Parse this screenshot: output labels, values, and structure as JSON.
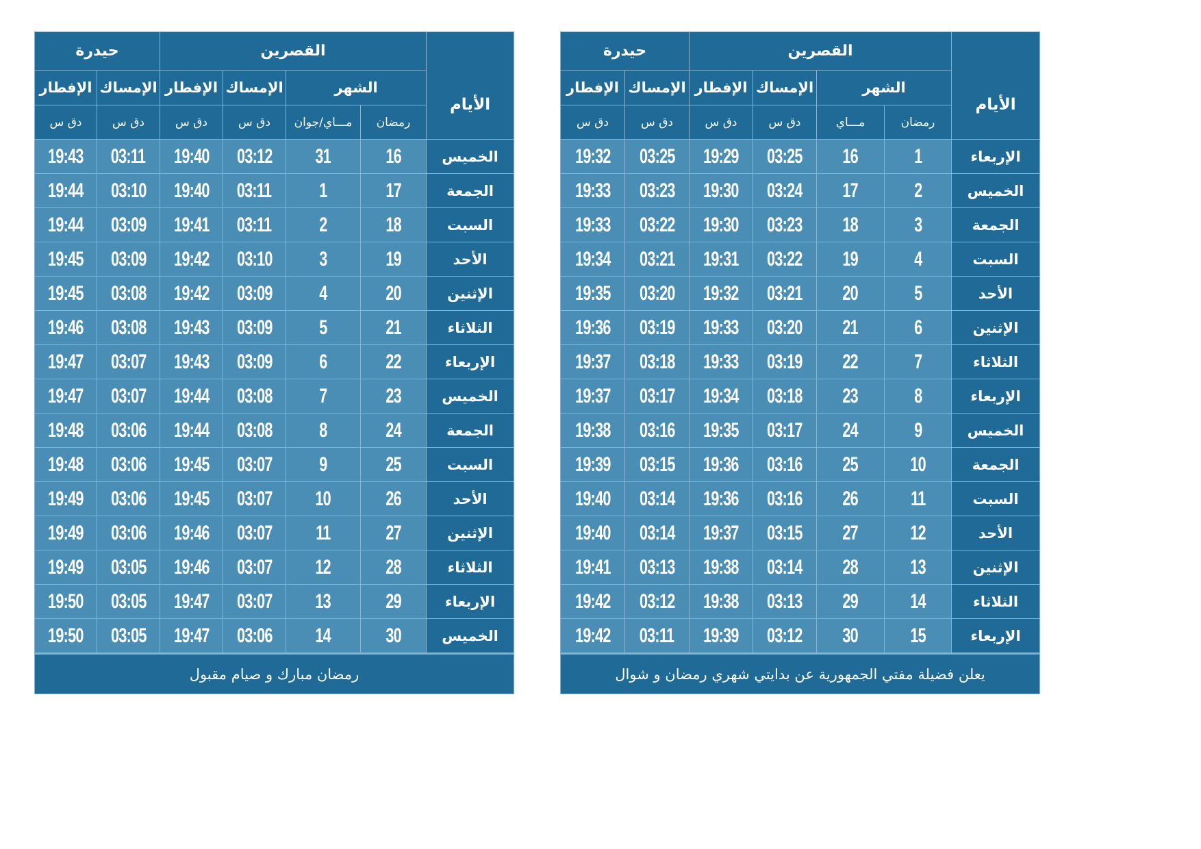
{
  "tables": [
    {
      "city1": "القصرين",
      "city2": "حيدرة",
      "days_header": "الأيام",
      "month_header": "الشهر",
      "imsak": "الإمساك",
      "iftar": "الإفطار",
      "ramadan_sub": "رمضان",
      "greg_sub": "مـــاي/جوان",
      "time_sub": "دق  س",
      "footer": "رمضان مبارك و صيام مقبول",
      "rows": [
        [
          "الخميس",
          "16",
          "31",
          "03:12",
          "19:40",
          "03:11",
          "19:43"
        ],
        [
          "الجمعة",
          "17",
          "1",
          "03:11",
          "19:40",
          "03:10",
          "19:44"
        ],
        [
          "السبت",
          "18",
          "2",
          "03:11",
          "19:41",
          "03:09",
          "19:44"
        ],
        [
          "الأحد",
          "19",
          "3",
          "03:10",
          "19:42",
          "03:09",
          "19:45"
        ],
        [
          "الإثنين",
          "20",
          "4",
          "03:09",
          "19:42",
          "03:08",
          "19:45"
        ],
        [
          "الثلاثاء",
          "21",
          "5",
          "03:09",
          "19:43",
          "03:08",
          "19:46"
        ],
        [
          "الإربعاء",
          "22",
          "6",
          "03:09",
          "19:43",
          "03:07",
          "19:47"
        ],
        [
          "الخميس",
          "23",
          "7",
          "03:08",
          "19:44",
          "03:07",
          "19:47"
        ],
        [
          "الجمعة",
          "24",
          "8",
          "03:08",
          "19:44",
          "03:06",
          "19:48"
        ],
        [
          "السبت",
          "25",
          "9",
          "03:07",
          "19:45",
          "03:06",
          "19:48"
        ],
        [
          "الأحد",
          "26",
          "10",
          "03:07",
          "19:45",
          "03:06",
          "19:49"
        ],
        [
          "الإثنين",
          "27",
          "11",
          "03:07",
          "19:46",
          "03:06",
          "19:49"
        ],
        [
          "الثلاثاء",
          "28",
          "12",
          "03:07",
          "19:46",
          "03:05",
          "19:49"
        ],
        [
          "الإربعاء",
          "29",
          "13",
          "03:07",
          "19:47",
          "03:05",
          "19:50"
        ],
        [
          "الخميس",
          "30",
          "14",
          "03:06",
          "19:47",
          "03:05",
          "19:50"
        ]
      ]
    },
    {
      "city1": "القصرين",
      "city2": "حيدرة",
      "days_header": "الأيام",
      "month_header": "الشهر",
      "imsak": "الإمساك",
      "iftar": "الإفطار",
      "ramadan_sub": "رمضان",
      "greg_sub": "مـــاي",
      "time_sub": "دق  س",
      "footer": "يعلن فضيلة مفتي الجمهورية عن بدايتي شهري رمضان و شوال",
      "rows": [
        [
          "الإربعاء",
          "1",
          "16",
          "03:25",
          "19:29",
          "03:25",
          "19:32"
        ],
        [
          "الخميس",
          "2",
          "17",
          "03:24",
          "19:30",
          "03:23",
          "19:33"
        ],
        [
          "الجمعة",
          "3",
          "18",
          "03:23",
          "19:30",
          "03:22",
          "19:33"
        ],
        [
          "السبت",
          "4",
          "19",
          "03:22",
          "19:31",
          "03:21",
          "19:34"
        ],
        [
          "الأحد",
          "5",
          "20",
          "03:21",
          "19:32",
          "03:20",
          "19:35"
        ],
        [
          "الإثنين",
          "6",
          "21",
          "03:20",
          "19:33",
          "03:19",
          "19:36"
        ],
        [
          "الثلاثاء",
          "7",
          "22",
          "03:19",
          "19:33",
          "03:18",
          "19:37"
        ],
        [
          "الإربعاء",
          "8",
          "23",
          "03:18",
          "19:34",
          "03:17",
          "19:37"
        ],
        [
          "الخميس",
          "9",
          "24",
          "03:17",
          "19:35",
          "03:16",
          "19:38"
        ],
        [
          "الجمعة",
          "10",
          "25",
          "03:16",
          "19:36",
          "03:15",
          "19:39"
        ],
        [
          "السبت",
          "11",
          "26",
          "03:16",
          "19:36",
          "03:14",
          "19:40"
        ],
        [
          "الأحد",
          "12",
          "27",
          "03:15",
          "19:37",
          "03:14",
          "19:40"
        ],
        [
          "الإثنين",
          "13",
          "28",
          "03:14",
          "19:38",
          "03:13",
          "19:41"
        ],
        [
          "الثلاثاء",
          "14",
          "29",
          "03:13",
          "19:38",
          "03:12",
          "19:42"
        ],
        [
          "الإربعاء",
          "15",
          "30",
          "03:12",
          "19:39",
          "03:11",
          "19:42"
        ]
      ]
    }
  ],
  "colors": {
    "header_blue": "#1f6a96",
    "cell_blue": "#4a8db5",
    "grid_line": "#86b3d1"
  }
}
